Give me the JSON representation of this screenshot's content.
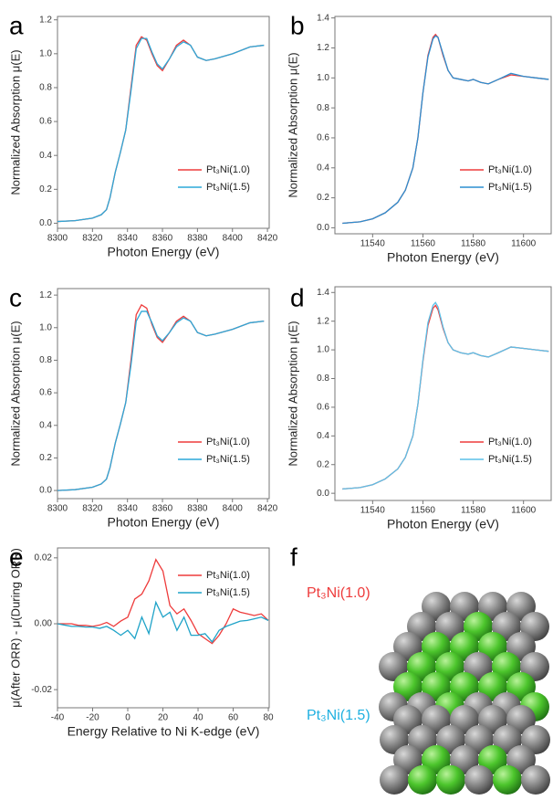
{
  "chart_data": [
    {
      "type": "line",
      "panel": "a",
      "x_label": "Photon Energy (eV)",
      "y_label": "Normalized Absorption μ(E)",
      "x": [
        8300,
        8310,
        8320,
        8325,
        8328,
        8330,
        8333,
        8336,
        8339,
        8342,
        8345,
        8348,
        8351,
        8354,
        8357,
        8360,
        8364,
        8368,
        8372,
        8376,
        8380,
        8385,
        8390,
        8400,
        8410,
        8418
      ],
      "series": [
        {
          "name": "Pt₃Ni(1.0)",
          "color": "#ee3b3b",
          "values": [
            0.01,
            0.015,
            0.03,
            0.05,
            0.08,
            0.15,
            0.3,
            0.42,
            0.55,
            0.8,
            1.05,
            1.1,
            1.08,
            1.0,
            0.93,
            0.9,
            0.97,
            1.05,
            1.08,
            1.05,
            0.98,
            0.96,
            0.97,
            1.0,
            1.04,
            1.05
          ]
        },
        {
          "name": "Pt₃Ni(1.5)",
          "color": "#2ba8d8",
          "values": [
            0.01,
            0.015,
            0.03,
            0.05,
            0.08,
            0.15,
            0.3,
            0.42,
            0.55,
            0.78,
            1.03,
            1.09,
            1.09,
            1.01,
            0.94,
            0.91,
            0.97,
            1.04,
            1.07,
            1.05,
            0.98,
            0.96,
            0.97,
            1.0,
            1.04,
            1.05
          ]
        }
      ],
      "xlim": [
        8300,
        8421
      ],
      "ylim": [
        -0.03,
        1.22
      ],
      "xticks": [
        8300,
        8320,
        8340,
        8360,
        8380,
        8400,
        8420
      ],
      "yticks": [
        {
          "value": 0,
          "label": "0.0"
        },
        0.2,
        0.4,
        0.6,
        0.8,
        {
          "value": 1,
          "label": "1.0"
        },
        1.2
      ]
    },
    {
      "type": "line",
      "panel": "b",
      "x_label": "Photon Energy (eV)",
      "y_label": "Normalized Absorption μ(E)",
      "x": [
        11528,
        11535,
        11540,
        11545,
        11550,
        11553,
        11556,
        11558,
        11560,
        11562,
        11564,
        11565,
        11566,
        11568,
        11570,
        11572,
        11575,
        11578,
        11580,
        11583,
        11586,
        11590,
        11595,
        11600,
        11605,
        11610
      ],
      "series": [
        {
          "name": "Pt₃Ni(1.0)",
          "color": "#ee3b3b",
          "values": [
            0.03,
            0.04,
            0.06,
            0.1,
            0.17,
            0.25,
            0.4,
            0.6,
            0.9,
            1.15,
            1.27,
            1.29,
            1.27,
            1.15,
            1.05,
            1.0,
            0.99,
            0.98,
            0.99,
            0.97,
            0.96,
            0.99,
            1.02,
            1.01,
            1.0,
            0.99
          ]
        },
        {
          "name": "Pt₃Ni(1.5)",
          "color": "#2b8fd0",
          "values": [
            0.03,
            0.04,
            0.06,
            0.1,
            0.17,
            0.25,
            0.4,
            0.6,
            0.9,
            1.14,
            1.26,
            1.28,
            1.27,
            1.16,
            1.05,
            1.0,
            0.99,
            0.98,
            0.99,
            0.97,
            0.96,
            0.99,
            1.03,
            1.01,
            1.0,
            0.99
          ]
        }
      ],
      "xlim": [
        11525,
        11611
      ],
      "ylim": [
        -0.04,
        1.41
      ],
      "xticks": [
        11540,
        11560,
        11580,
        11600
      ],
      "yticks": [
        {
          "value": 0,
          "label": "0.0"
        },
        0.2,
        0.4,
        0.6,
        0.8,
        {
          "value": 1,
          "label": "1.0"
        },
        1.2,
        1.4
      ]
    },
    {
      "type": "line",
      "panel": "c",
      "x_label": "Photon Energy (eV)",
      "y_label": "Normalized Absorption μ(E)",
      "x": [
        8300,
        8310,
        8320,
        8325,
        8328,
        8330,
        8333,
        8336,
        8339,
        8342,
        8345,
        8348,
        8351,
        8354,
        8357,
        8360,
        8364,
        8368,
        8372,
        8376,
        8380,
        8385,
        8390,
        8400,
        8410,
        8418
      ],
      "series": [
        {
          "name": "Pt₃Ni(1.0)",
          "color": "#ee3b3b",
          "values": [
            0.0,
            0.005,
            0.02,
            0.04,
            0.07,
            0.14,
            0.29,
            0.41,
            0.54,
            0.8,
            1.08,
            1.14,
            1.12,
            1.02,
            0.94,
            0.91,
            0.97,
            1.04,
            1.07,
            1.04,
            0.97,
            0.95,
            0.96,
            0.99,
            1.03,
            1.04
          ]
        },
        {
          "name": "Pt₃Ni(1.5)",
          "color": "#2ba8d8",
          "values": [
            0.0,
            0.005,
            0.02,
            0.04,
            0.07,
            0.14,
            0.29,
            0.41,
            0.54,
            0.77,
            1.04,
            1.1,
            1.1,
            1.03,
            0.95,
            0.92,
            0.97,
            1.03,
            1.06,
            1.04,
            0.97,
            0.95,
            0.96,
            0.99,
            1.03,
            1.04
          ]
        }
      ],
      "xlim": [
        8300,
        8421
      ],
      "ylim": [
        -0.05,
        1.24
      ],
      "xticks": [
        8300,
        8320,
        8340,
        8360,
        8380,
        8400,
        8420
      ],
      "yticks": [
        {
          "value": 0,
          "label": "0.0"
        },
        0.2,
        0.4,
        0.6,
        0.8,
        {
          "value": 1,
          "label": "1.0"
        },
        1.2
      ]
    },
    {
      "type": "line",
      "panel": "d",
      "x_label": "Photon Energy (eV)",
      "y_label": "Normalized Absorption μ(E)",
      "x": [
        11528,
        11535,
        11540,
        11545,
        11550,
        11553,
        11556,
        11558,
        11560,
        11562,
        11564,
        11565,
        11566,
        11568,
        11570,
        11572,
        11575,
        11578,
        11580,
        11583,
        11586,
        11590,
        11595,
        11600,
        11605,
        11610
      ],
      "series": [
        {
          "name": "Pt₃Ni(1.0)",
          "color": "#ee3b3b",
          "values": [
            0.03,
            0.04,
            0.06,
            0.1,
            0.17,
            0.25,
            0.4,
            0.62,
            0.92,
            1.17,
            1.29,
            1.31,
            1.28,
            1.15,
            1.05,
            1.0,
            0.98,
            0.97,
            0.98,
            0.96,
            0.95,
            0.98,
            1.02,
            1.01,
            1.0,
            0.99
          ]
        },
        {
          "name": "Pt₃Ni(1.5)",
          "color": "#5bc0e8",
          "values": [
            0.03,
            0.04,
            0.06,
            0.1,
            0.17,
            0.25,
            0.4,
            0.62,
            0.93,
            1.19,
            1.31,
            1.33,
            1.3,
            1.16,
            1.05,
            1.0,
            0.98,
            0.97,
            0.98,
            0.96,
            0.95,
            0.98,
            1.02,
            1.01,
            1.0,
            0.99
          ]
        }
      ],
      "xlim": [
        11525,
        11611
      ],
      "ylim": [
        -0.05,
        1.44
      ],
      "xticks": [
        11540,
        11560,
        11580,
        11600
      ],
      "yticks": [
        {
          "value": 0,
          "label": "0.0"
        },
        0.2,
        0.4,
        0.6,
        0.8,
        {
          "value": 1,
          "label": "1.0"
        },
        1.2,
        1.4
      ]
    },
    {
      "type": "line",
      "panel": "e",
      "x_label": "Energy Relative to Ni K-edge (eV)",
      "y_label": "μ(After ORR) - μ(During ORR)",
      "x": [
        -40,
        -36,
        -32,
        -28,
        -24,
        -20,
        -16,
        -12,
        -8,
        -4,
        0,
        4,
        8,
        12,
        16,
        20,
        24,
        28,
        32,
        36,
        40,
        44,
        48,
        52,
        56,
        60,
        64,
        68,
        72,
        76,
        80
      ],
      "series": [
        {
          "name": "Pt₃Ni(1.0)",
          "color": "#ee3b3b",
          "values": [
            0,
            0,
            0,
            -0.0005,
            -0.0005,
            -0.0008,
            -0.0004,
            0.0004,
            -0.0008,
            0.0008,
            0.002,
            0.0075,
            0.009,
            0.013,
            0.0195,
            0.016,
            0.0055,
            0.003,
            0.0045,
            0.001,
            -0.003,
            -0.0045,
            -0.006,
            -0.0035,
            0,
            0.0045,
            0.0035,
            0.003,
            0.0025,
            0.003,
            0.001
          ]
        },
        {
          "name": "Pt₃Ni(1.5)",
          "color": "#1fa3c8",
          "values": [
            0,
            -0.0004,
            -0.0008,
            -0.0008,
            -0.001,
            -0.001,
            -0.0014,
            -0.0008,
            -0.002,
            -0.0035,
            -0.002,
            -0.0045,
            0.002,
            -0.003,
            0.0065,
            0.002,
            0.0035,
            -0.002,
            0.002,
            -0.0035,
            -0.0035,
            -0.003,
            -0.0055,
            -0.002,
            -0.0008,
            0,
            0.0008,
            0.001,
            0.0015,
            0.002,
            0.001
          ]
        }
      ],
      "xlim": [
        -40,
        80.5
      ],
      "ylim": [
        -0.0255,
        0.023
      ],
      "xticks": [
        -40,
        -20,
        0,
        20,
        40,
        60,
        80
      ],
      "yticks": [
        -0.02,
        {
          "value": 0,
          "label": "0.00"
        },
        0.02
      ]
    }
  ],
  "diagram": {
    "panel": "f",
    "labels": [
      "Pt₃Ni(1.0)",
      "Pt₃Ni(1.5)"
    ]
  }
}
